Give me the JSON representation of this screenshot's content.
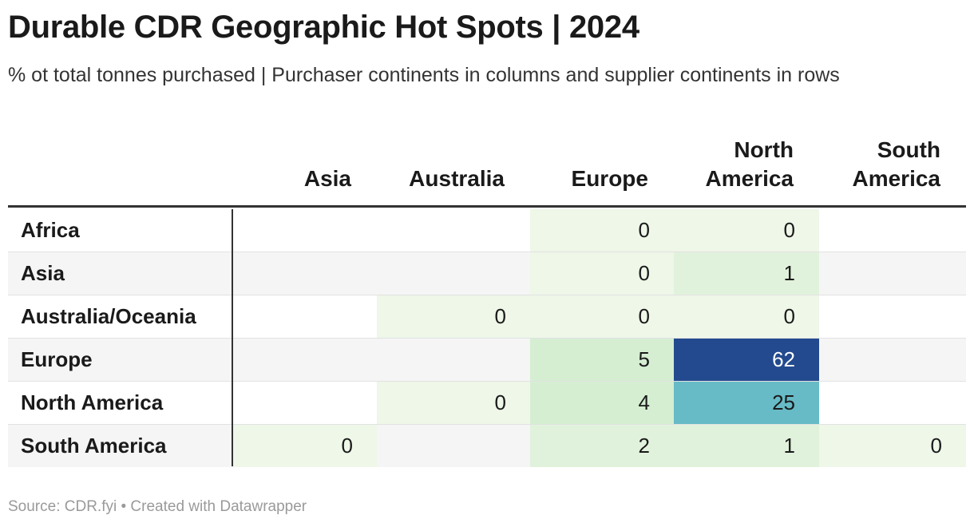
{
  "title": "Durable CDR Geographic Hot Spots | 2024",
  "subtitle": "% ot total tonnes purchased | Purchaser continents in columns and supplier continents in rows",
  "source": "Source: CDR.fyi • Created with Datawrapper",
  "chart_data": {
    "type": "heatmap",
    "title": "Durable CDR Geographic Hot Spots | 2024",
    "subtitle": "% ot total tonnes purchased | Purchaser continents in columns and supplier continents in rows",
    "columns": [
      {
        "line1": "",
        "line2": "Asia"
      },
      {
        "line1": "",
        "line2": "Australia"
      },
      {
        "line1": "",
        "line2": "Europe"
      },
      {
        "line1": "North",
        "line2": "America"
      },
      {
        "line1": "South",
        "line2": "America"
      }
    ],
    "rows": [
      "Africa",
      "Asia",
      "Australia/Oceania",
      "Europe",
      "North America",
      "South America"
    ],
    "values": [
      [
        null,
        null,
        0,
        0,
        null
      ],
      [
        null,
        null,
        0,
        1,
        null
      ],
      [
        null,
        0,
        0,
        0,
        null
      ],
      [
        null,
        null,
        5,
        62,
        null
      ],
      [
        null,
        0,
        4,
        25,
        null
      ],
      [
        0,
        null,
        2,
        1,
        0
      ]
    ],
    "colors": {
      "zero": "#eef7e8",
      "one_to_two": "#e1f2dc",
      "four_to_five": "#d5eed2",
      "twenty_five": "#67bbc6",
      "sixty_two": "#234a8e",
      "row_stripe": "#f5f5f5"
    }
  }
}
